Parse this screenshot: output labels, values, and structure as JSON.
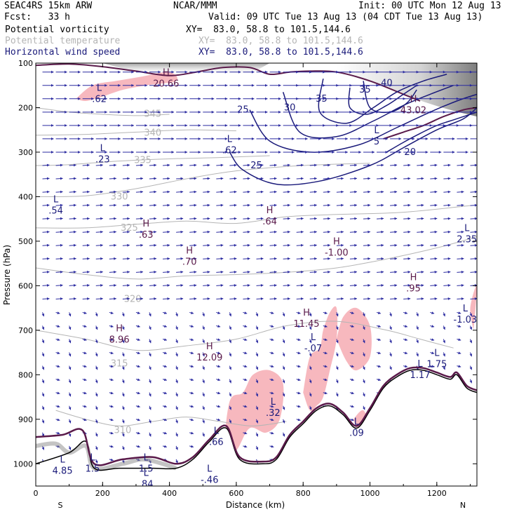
{
  "header": {
    "model": "SEAC4RS 15km ARW",
    "fcst": "Fcst:   33 h",
    "center": "NCAR/MMM",
    "init": "Init: 00 UTC Mon 12 Aug 13",
    "valid": "Valid: 09 UTC Tue 13 Aug 13 (04 CDT Tue 13 Aug 13)",
    "fields": [
      {
        "name": "Potential vorticity",
        "xy": "XY=  83.0, 58.8 to 101.5,144.6",
        "color": "#000000"
      },
      {
        "name": "Potential temperature",
        "xy": "XY=  83.0, 58.8 to 101.5,144.6",
        "color": "#b5b5b5"
      },
      {
        "name": "Horizontal wind speed",
        "xy": "XY=  83.0, 58.8 to 101.5,144.6",
        "color": "#1a1a7a"
      }
    ]
  },
  "chart_data": {
    "type": "cross-section",
    "xlabel": "Distance (km)",
    "ylabel": "Pressure (hPa)",
    "xlim": [
      0,
      1320
    ],
    "ylim": [
      1050,
      100
    ],
    "x_ticks": [
      "0",
      "200",
      "400",
      "600",
      "800",
      "1000",
      "1200"
    ],
    "y_ticks": [
      "100",
      "200",
      "300",
      "400",
      "500",
      "600",
      "700",
      "800",
      "900",
      "1000"
    ],
    "endpoint_labels": {
      "left": "S",
      "right": "N"
    },
    "colors": {
      "pv_positive_fill": "#f7b8be",
      "pv_contour": "#5a1a4a",
      "theta_contour": "#b5b5b5",
      "wind_contour": "#1a1a7a",
      "vectors": "#2a2aa0",
      "terrain": "#000000"
    },
    "theta_contours": [
      {
        "label": "345",
        "points": [
          [
            0,
            200
          ],
          [
            100,
            210
          ],
          [
            200,
            215
          ],
          [
            300,
            218
          ],
          [
            400,
            215
          ]
        ],
        "label_at": [
          350,
          214
        ]
      },
      {
        "label": "340",
        "points": [
          [
            0,
            262
          ],
          [
            150,
            260
          ],
          [
            300,
            255
          ],
          [
            450,
            250
          ],
          [
            600,
            252
          ]
        ],
        "label_at": [
          350,
          257
        ]
      },
      {
        "label": "335",
        "points": [
          [
            0,
            330
          ],
          [
            100,
            328
          ],
          [
            250,
            320
          ],
          [
            400,
            315
          ],
          [
            550,
            312
          ],
          [
            700,
            308
          ]
        ],
        "label_at": [
          320,
          318
        ]
      },
      {
        "label": "330",
        "points": [
          [
            0,
            400
          ],
          [
            150,
            398
          ],
          [
            300,
            382
          ],
          [
            450,
            360
          ],
          [
            600,
            342
          ],
          [
            800,
            330
          ],
          [
            1000,
            325
          ]
        ],
        "label_at": [
          250,
          400
        ]
      },
      {
        "label": "325",
        "points": [
          [
            0,
            470
          ],
          [
            150,
            470
          ],
          [
            300,
            462
          ],
          [
            450,
            455
          ],
          [
            600,
            460
          ],
          [
            750,
            445
          ],
          [
            900,
            440
          ],
          [
            1100,
            435
          ],
          [
            1300,
            420
          ]
        ],
        "label_at": [
          280,
          470
        ]
      },
      {
        "label": "320",
        "points": [
          [
            0,
            560
          ],
          [
            150,
            575
          ],
          [
            300,
            585
          ],
          [
            450,
            578
          ],
          [
            600,
            575
          ],
          [
            750,
            570
          ],
          [
            900,
            560
          ],
          [
            1050,
            540
          ],
          [
            1200,
            515
          ],
          [
            1320,
            490
          ]
        ],
        "label_at": [
          290,
          630
        ]
      },
      {
        "label": "315",
        "points": [
          [
            0,
            700
          ],
          [
            150,
            720
          ],
          [
            300,
            745
          ],
          [
            450,
            735
          ],
          [
            600,
            720
          ],
          [
            750,
            690
          ],
          [
            900,
            680
          ],
          [
            1050,
            700
          ],
          [
            1150,
            720
          ],
          [
            1250,
            740
          ]
        ],
        "label_at": [
          250,
          775
        ]
      },
      {
        "label": "310",
        "points": [
          [
            60,
            880
          ],
          [
            150,
            900
          ],
          [
            250,
            915
          ],
          [
            350,
            905
          ],
          [
            450,
            895
          ],
          [
            550,
            905
          ],
          [
            650,
            915
          ],
          [
            750,
            905
          ]
        ],
        "label_at": [
          260,
          925
        ]
      }
    ],
    "wind_speed_contours": [
      {
        "label": "20",
        "points": [
          [
            1050,
            300
          ],
          [
            1100,
            278
          ],
          [
            1150,
            258
          ],
          [
            1200,
            240
          ],
          [
            1260,
            225
          ],
          [
            1320,
            210
          ]
        ],
        "label_at": [
          1120,
          300
        ]
      },
      {
        "label": "25",
        "points": [
          [
            580,
            300
          ],
          [
            620,
            340
          ],
          [
            720,
            372
          ],
          [
            850,
            365
          ],
          [
            1000,
            330
          ],
          [
            1100,
            290
          ],
          [
            1200,
            250
          ],
          [
            1280,
            225
          ],
          [
            1320,
            200
          ]
        ],
        "label_at": [
          660,
          330
        ]
      },
      {
        "label": "25",
        "points": [
          [
            640,
            205
          ],
          [
            700,
            275
          ],
          [
            820,
            300
          ],
          [
            960,
            285
          ],
          [
            1080,
            245
          ],
          [
            1180,
            210
          ],
          [
            1260,
            185
          ],
          [
            1320,
            170
          ]
        ],
        "label_at": [
          620,
          205
        ]
      },
      {
        "label": "30",
        "points": [
          [
            740,
            165
          ],
          [
            790,
            255
          ],
          [
            900,
            265
          ],
          [
            1010,
            230
          ],
          [
            1100,
            195
          ],
          [
            1180,
            170
          ],
          [
            1250,
            150
          ]
        ],
        "label_at": [
          760,
          200
        ]
      },
      {
        "label": "35",
        "points": [
          [
            860,
            135
          ],
          [
            850,
            210
          ],
          [
            930,
            235
          ],
          [
            1010,
            200
          ],
          [
            1080,
            165
          ],
          [
            1160,
            140
          ],
          [
            1230,
            125
          ]
        ],
        "label_at": [
          855,
          180
        ]
      },
      {
        "label": "35",
        "points": [
          [
            940,
            155
          ],
          [
            940,
            200
          ],
          [
            990,
            215
          ],
          [
            1050,
            195
          ],
          [
            1100,
            170
          ],
          [
            1140,
            150
          ]
        ],
        "label_at": [
          985,
          160
        ]
      },
      {
        "label": "40",
        "points": [
          [
            980,
            140
          ],
          [
            1000,
            200
          ],
          [
            1060,
            210
          ],
          [
            1110,
            190
          ],
          [
            1140,
            160
          ]
        ],
        "label_at": [
          1050,
          145
        ]
      }
    ],
    "extrema_labels": [
      {
        "type": "L",
        "value": ".23",
        "x": 200,
        "y": 310
      },
      {
        "type": "L",
        "value": ".62",
        "x": 190,
        "y": 175
      },
      {
        "type": "H",
        "value": "20.66",
        "x": 390,
        "y": 140
      },
      {
        "type": "L",
        "value": ".62",
        "x": 580,
        "y": 290
      },
      {
        "type": "L",
        "value": ".54",
        "x": 60,
        "y": 425
      },
      {
        "type": "H",
        "value": ".63",
        "x": 330,
        "y": 480
      },
      {
        "type": "H",
        "value": ".64",
        "x": 700,
        "y": 450
      },
      {
        "type": "H",
        "value": ".70",
        "x": 460,
        "y": 540
      },
      {
        "type": "H",
        "value": "-1.00",
        "x": 900,
        "y": 520
      },
      {
        "type": "L",
        "value": "2.35",
        "x": 1290,
        "y": 490
      },
      {
        "type": "H",
        "value": ".95",
        "x": 1130,
        "y": 600
      },
      {
        "type": "L",
        "value": "-1.03",
        "x": 1285,
        "y": 670
      },
      {
        "type": "H",
        "value": "8.96",
        "x": 250,
        "y": 715
      },
      {
        "type": "H",
        "value": "11.45",
        "x": 810,
        "y": 680
      },
      {
        "type": "H",
        "value": "12.09",
        "x": 520,
        "y": 755
      },
      {
        "type": "L",
        "value": "-.07",
        "x": 830,
        "y": 735
      },
      {
        "type": "L",
        "value": "1.75",
        "x": 1200,
        "y": 770
      },
      {
        "type": "L",
        "value": "1.17",
        "x": 1150,
        "y": 795
      },
      {
        "type": "L",
        "value": ".32",
        "x": 710,
        "y": 880
      },
      {
        "type": "L",
        "value": ".66",
        "x": 540,
        "y": 945
      },
      {
        "type": "L",
        "value": ".09",
        "x": 960,
        "y": 925
      },
      {
        "type": "L",
        "value": "4.85",
        "x": 80,
        "y": 1010
      },
      {
        "type": "L",
        "value": "1.5",
        "x": 170,
        "y": 1005
      },
      {
        "type": "L",
        "value": "1.5",
        "x": 330,
        "y": 1005
      },
      {
        "type": "L",
        "value": ".84",
        "x": 330,
        "y": 1040
      },
      {
        "type": "L",
        "value": "-.46",
        "x": 520,
        "y": 1030
      },
      {
        "type": "H",
        "value": "43.02",
        "x": 1130,
        "y": 200
      },
      {
        "type": "L",
        "value": "5",
        "x": 1020,
        "y": 270
      }
    ],
    "pv_positive_regions": [
      [
        [
          120,
          180
        ],
        [
          170,
          150
        ],
        [
          240,
          140
        ],
        [
          320,
          130
        ],
        [
          400,
          120
        ],
        [
          420,
          140
        ],
        [
          330,
          150
        ],
        [
          260,
          160
        ],
        [
          200,
          175
        ],
        [
          150,
          185
        ]
      ],
      [
        [
          560,
          980
        ],
        [
          580,
          860
        ],
        [
          620,
          840
        ],
        [
          650,
          800
        ],
        [
          700,
          790
        ],
        [
          740,
          820
        ],
        [
          730,
          900
        ],
        [
          690,
          930
        ],
        [
          640,
          920
        ],
        [
          600,
          970
        ]
      ],
      [
        [
          800,
          840
        ],
        [
          820,
          760
        ],
        [
          850,
          740
        ],
        [
          860,
          700
        ],
        [
          880,
          660
        ],
        [
          900,
          650
        ],
        [
          900,
          720
        ],
        [
          880,
          790
        ],
        [
          860,
          850
        ],
        [
          840,
          870
        ],
        [
          820,
          880
        ]
      ],
      [
        [
          900,
          720
        ],
        [
          920,
          670
        ],
        [
          960,
          650
        ],
        [
          1000,
          690
        ],
        [
          1000,
          760
        ],
        [
          960,
          790
        ],
        [
          930,
          770
        ]
      ],
      [
        [
          1310,
          700
        ],
        [
          1300,
          650
        ],
        [
          1320,
          600
        ]
      ],
      [
        [
          950,
          900
        ],
        [
          980,
          880
        ],
        [
          1000,
          920
        ],
        [
          970,
          930
        ]
      ]
    ],
    "terrain": [
      [
        0,
        1000
      ],
      [
        100,
        975
      ],
      [
        150,
        950
      ],
      [
        175,
        1010
      ],
      [
        250,
        1010
      ],
      [
        350,
        1010
      ],
      [
        420,
        1010
      ],
      [
        470,
        990
      ],
      [
        520,
        950
      ],
      [
        570,
        920
      ],
      [
        610,
        990
      ],
      [
        680,
        1000
      ],
      [
        720,
        990
      ],
      [
        760,
        940
      ],
      [
        800,
        910
      ],
      [
        840,
        880
      ],
      [
        880,
        870
      ],
      [
        920,
        890
      ],
      [
        960,
        920
      ],
      [
        1000,
        880
      ],
      [
        1040,
        830
      ],
      [
        1080,
        805
      ],
      [
        1120,
        790
      ],
      [
        1160,
        790
      ],
      [
        1200,
        800
      ],
      [
        1240,
        810
      ],
      [
        1260,
        800
      ],
      [
        1290,
        830
      ],
      [
        1320,
        840
      ]
    ],
    "vector_angles_deg": {
      "upper_jet": 0,
      "midlevel": 5,
      "lower": -20
    },
    "wind_note": "Vectors drawn rightward aloft (jet near 200 hPa), weak and variable near surface"
  }
}
